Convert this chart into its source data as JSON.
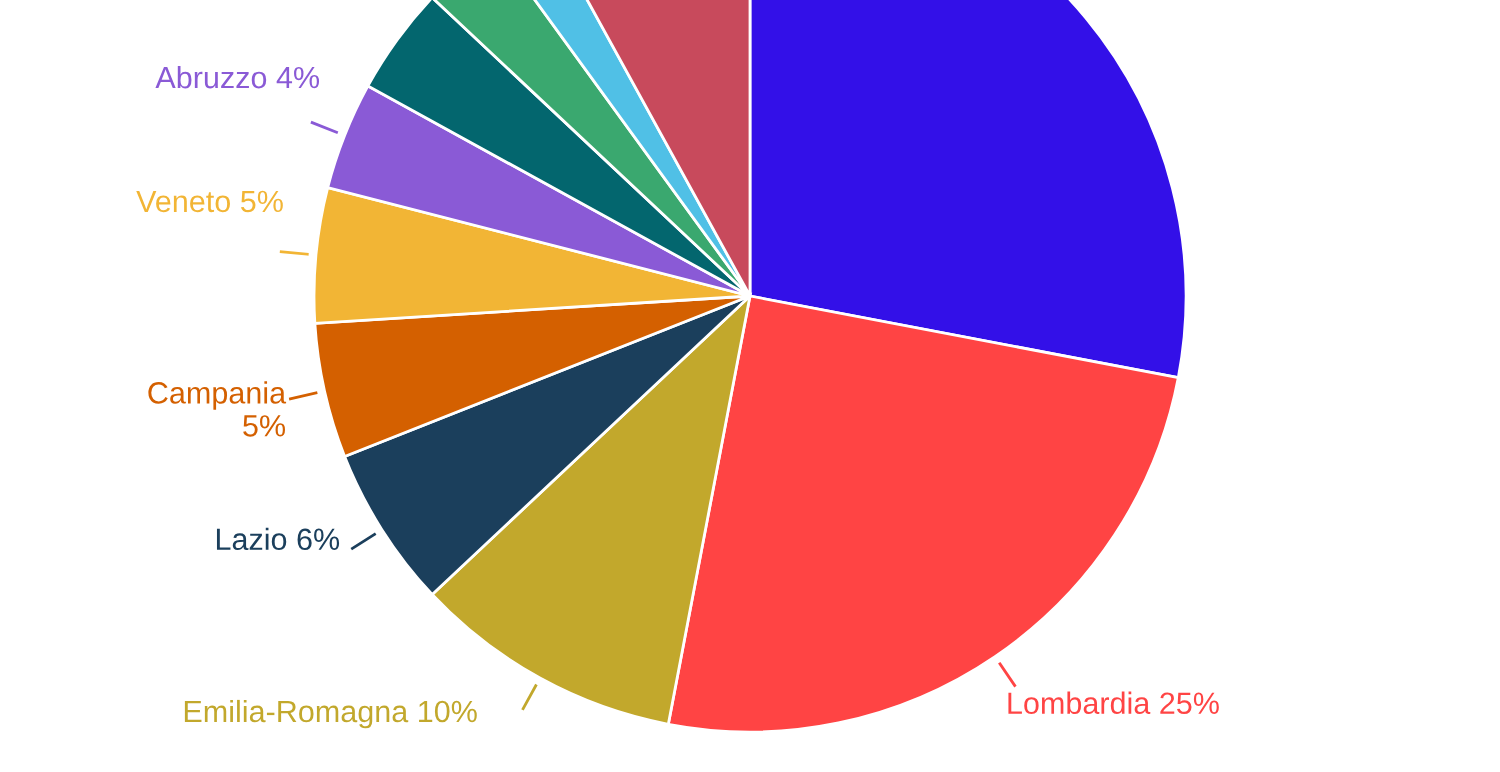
{
  "chart_data": {
    "type": "pie",
    "categories": [
      null,
      "Lombardia",
      "Emilia-Romagna",
      "Lazio",
      "Campania",
      "Veneto",
      "Abruzzo",
      null,
      null,
      null,
      null
    ],
    "values": [
      28,
      25,
      10,
      6,
      5,
      5,
      4,
      4,
      3,
      2,
      8
    ],
    "value_labels": [
      null,
      "25%",
      "10%",
      "6%",
      "5%",
      "5%",
      "4%",
      null,
      null,
      null,
      null
    ],
    "colors": [
      "#3310e8",
      "#ff4444",
      "#c2a82c",
      "#1b3f5c",
      "#d46000",
      "#f2b535",
      "#8a5ad6",
      "#03666e",
      "#3aa86f",
      "#50c0e6",
      "#c84a5c"
    ]
  }
}
